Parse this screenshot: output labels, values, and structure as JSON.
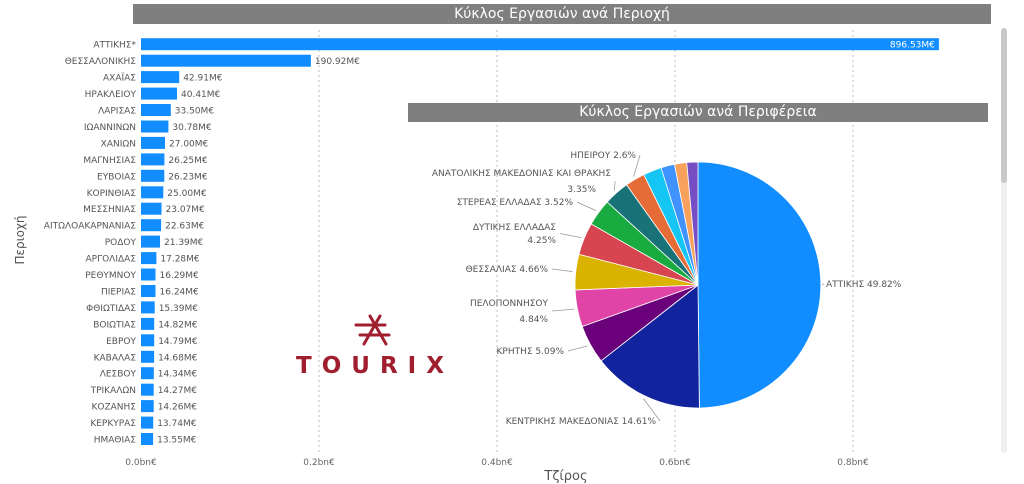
{
  "bar_chart": {
    "title": "Κύκλος Εργασιών ανά Περιοχή"
  },
  "pie_chart": {
    "title": "Κύκλος Εργασιών ανά Περιφέρεια"
  },
  "logo": {
    "text": "TOURIX"
  },
  "colors": {
    "bar": "#118dff",
    "title_bg": "#7f7f7f",
    "grid": "#bdbdbd",
    "logo": "#a01f2e"
  },
  "chart_data": [
    {
      "type": "bar",
      "orientation": "horizontal",
      "title": "Κύκλος Εργασιών ανά Περιοχή",
      "xlabel": "Τζίρος",
      "ylabel": "Περιοχή",
      "xlim": [
        0,
        0.9
      ],
      "xticks": [
        "0.0bn€",
        "0.2bn€",
        "0.4bn€",
        "0.6bn€",
        "0.8bn€"
      ],
      "grid": true,
      "categories": [
        "ΑΤΤΙΚΗΣ*",
        "ΘΕΣΣΑΛΟΝΙΚΗΣ",
        "ΑΧΑΪΑΣ",
        "ΗΡΑΚΛΕΙΟΥ",
        "ΛΑΡΙΣΑΣ",
        "ΙΩΑΝΝΙΝΩΝ",
        "ΧΑΝΙΩΝ",
        "ΜΑΓΝΗΣΙΑΣ",
        "ΕΥΒΟΙΑΣ",
        "ΚΟΡΙΝΘΙΑΣ",
        "ΜΕΣΣΗΝΙΑΣ",
        "ΑΙΤΩΛΟΑΚΑΡΝΑΝΙΑΣ",
        "ΡΟΔΟΥ",
        "ΑΡΓΟΛΙΔΑΣ",
        "ΡΕΘΥΜΝΟΥ",
        "ΠΙΕΡΙΑΣ",
        "ΦΘΙΩΤΙΔΑΣ",
        "ΒΟΙΩΤΙΑΣ",
        "ΕΒΡΟΥ",
        "ΚΑΒΑΛΑΣ",
        "ΛΕΣΒΟΥ",
        "ΤΡΙΚΑΛΩΝ",
        "ΚΟΖΑΝΗΣ",
        "ΚΕΡΚΥΡΑΣ",
        "ΗΜΑΘΙΑΣ"
      ],
      "values": [
        896.53,
        190.92,
        42.91,
        40.41,
        33.5,
        30.78,
        27.0,
        26.25,
        26.23,
        25.0,
        23.07,
        22.63,
        21.39,
        17.28,
        16.29,
        16.24,
        15.39,
        14.82,
        14.79,
        14.68,
        14.34,
        14.27,
        14.26,
        13.74,
        13.55
      ],
      "value_unit": "M€",
      "data_labels": [
        "896.53M€",
        "190.92M€",
        "42.91M€",
        "40.41M€",
        "33.50M€",
        "30.78M€",
        "27.00M€",
        "26.25M€",
        "26.23M€",
        "25.00M€",
        "23.07M€",
        "22.63M€",
        "21.39M€",
        "17.28M€",
        "16.29M€",
        "16.24M€",
        "15.39M€",
        "14.82M€",
        "14.79M€",
        "14.68M€",
        "14.34M€",
        "14.27M€",
        "14.26M€",
        "13.74M€",
        "13.55M€"
      ]
    },
    {
      "type": "pie",
      "title": "Κύκλος Εργασιών ανά Περιφέρεια",
      "slices": [
        {
          "label": "ΑΤΤΙΚΗΣ",
          "percent": 49.82,
          "color": "#118dff",
          "display": "ΑΤΤΙΚΗΣ 49.82%"
        },
        {
          "label": "ΚΕΝΤΡΙΚΗΣ ΜΑΚΕΔΟΝΙΑΣ",
          "percent": 14.61,
          "color": "#12239e",
          "display": "ΚΕΝΤΡΙΚΗΣ ΜΑΚΕΔΟΝΙΑΣ 14.61%"
        },
        {
          "label": "ΚΡΗΤΗΣ",
          "percent": 5.09,
          "color": "#6b007b",
          "display": "ΚΡΗΤΗΣ 5.09%"
        },
        {
          "label": "ΠΕΛΟΠΟΝΝΗΣΟΥ",
          "percent": 4.84,
          "color": "#e044a7",
          "display": "ΠΕΛΟΠΟΝΝΗΣΟΥ 4.84%"
        },
        {
          "label": "ΘΕΣΣΑΛΙΑΣ",
          "percent": 4.66,
          "color": "#d9b300",
          "display": "ΘΕΣΣΑΛΙΑΣ 4.66%"
        },
        {
          "label": "ΔΥΤΙΚΗΣ ΕΛΛΑΔΑΣ",
          "percent": 4.25,
          "color": "#d64550",
          "display": "ΔΥΤΙΚΗΣ ΕΛΛΑΔΑΣ 4.25%"
        },
        {
          "label": "ΣΤΕΡΕΑΣ ΕΛΛΑΔΑΣ",
          "percent": 3.52,
          "color": "#1aab40",
          "display": "ΣΤΕΡΕΑΣ ΕΛΛΑΔΑΣ 3.52%"
        },
        {
          "label": "ΑΝΑΤΟΛΙΚΗΣ ΜΑΚΕΔΟΝΙΑΣ ΚΑΙ ΘΡΑΚΗΣ",
          "percent": 3.35,
          "color": "#197278",
          "display": "ΑΝΑΤΟΛΙΚΗΣ ΜΑΚΕΔΟΝΙΑΣ ΚΑΙ ΘΡΑΚΗΣ 3.35%"
        },
        {
          "label": "ΗΠΕΙΡΟΥ",
          "percent": 2.6,
          "color": "#e66c37",
          "display": "ΗΠΕΙΡΟΥ 2.6%"
        },
        {
          "label": "",
          "percent": 2.4,
          "color": "#15c6f4",
          "display": ""
        },
        {
          "label": "",
          "percent": 1.8,
          "color": "#4092ff",
          "display": ""
        },
        {
          "label": "",
          "percent": 1.6,
          "color": "#f7a15d",
          "display": ""
        },
        {
          "label": "",
          "percent": 1.46,
          "color": "#744ec2",
          "display": ""
        }
      ]
    }
  ]
}
